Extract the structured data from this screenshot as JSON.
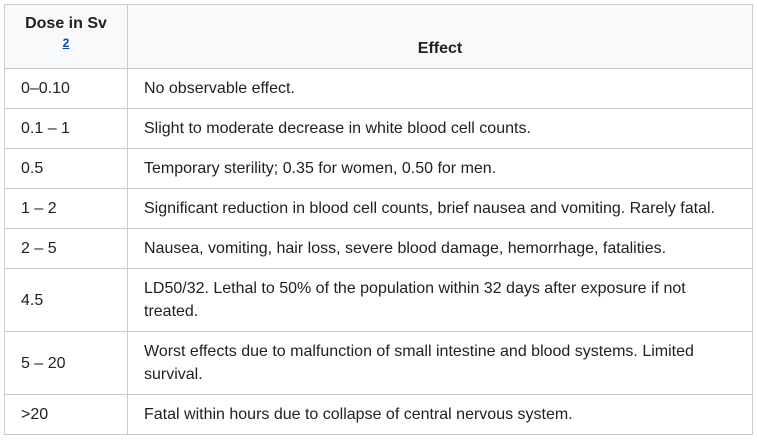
{
  "table": {
    "headers": {
      "dose": "Dose in Sv",
      "dose_ref": "2",
      "effect": "Effect"
    },
    "rows": [
      {
        "dose": "0–0.10",
        "effect": "No observable effect."
      },
      {
        "dose": "0.1 – 1",
        "effect": "Slight to moderate decrease in white blood cell counts."
      },
      {
        "dose": "0.5",
        "effect": "Temporary sterility; 0.35 for women, 0.50 for men."
      },
      {
        "dose": "1 – 2",
        "effect": "Significant reduction in blood cell counts, brief nausea and vomiting. Rarely fatal."
      },
      {
        "dose": "2 – 5",
        "effect": "Nausea, vomiting, hair loss, severe blood damage, hemorrhage, fatalities."
      },
      {
        "dose": "4.5",
        "effect": "LD50/32. Lethal to 50% of the population within 32 days after exposure if not treated."
      },
      {
        "dose": "5 – 20",
        "effect": "Worst effects due to malfunction of small intestine and blood systems. Limited survival."
      },
      {
        "dose": ">20",
        "effect": "Fatal within hours due to collapse of central nervous system."
      }
    ]
  }
}
